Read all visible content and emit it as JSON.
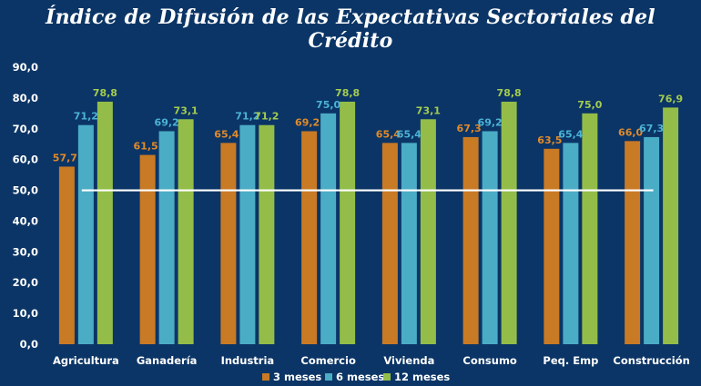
{
  "chart_data": {
    "type": "bar",
    "title": "Índice de Difusión de las Expectativas Sectoriales del Crédito",
    "categories": [
      "Agricultura",
      "Ganadería",
      "Industria",
      "Comercio",
      "Vivienda",
      "Consumo",
      "Peq. Emp",
      "Construcción"
    ],
    "series": [
      {
        "name": "3 meses",
        "color": "#c97a25",
        "label_color": "#e08a2a",
        "values": [
          57.7,
          61.5,
          65.4,
          69.2,
          65.4,
          67.3,
          63.5,
          66.0
        ],
        "labels": [
          "57,7",
          "61,5",
          "65,4",
          "69,2",
          "65,4",
          "67,3",
          "63,5",
          "66,0"
        ]
      },
      {
        "name": "6 meses",
        "color": "#4bacc6",
        "label_color": "#4bb3d6",
        "values": [
          71.2,
          69.2,
          71.2,
          75.0,
          65.4,
          69.2,
          65.4,
          67.3
        ],
        "labels": [
          "71,2",
          "69,2",
          "71,2",
          "75,0",
          "65,4",
          "69,2",
          "65,4",
          "67,3"
        ]
      },
      {
        "name": "12 meses",
        "color": "#93bd48",
        "label_color": "#a4cc4e",
        "values": [
          78.8,
          73.1,
          71.2,
          78.8,
          73.1,
          78.8,
          75.0,
          76.9
        ],
        "labels": [
          "78,8",
          "73,1",
          "71,2",
          "78,8",
          "73,1",
          "78,8",
          "75,0",
          "76,9"
        ]
      }
    ],
    "yticks": [
      "0,0",
      "10,0",
      "20,0",
      "30,0",
      "40,0",
      "50,0",
      "60,0",
      "70,0",
      "80,0",
      "90,0"
    ],
    "ylim": [
      0,
      90
    ],
    "reference_line": 50,
    "reference_color": "#ffffff",
    "legend_position": "bottom-center",
    "grid": false
  }
}
